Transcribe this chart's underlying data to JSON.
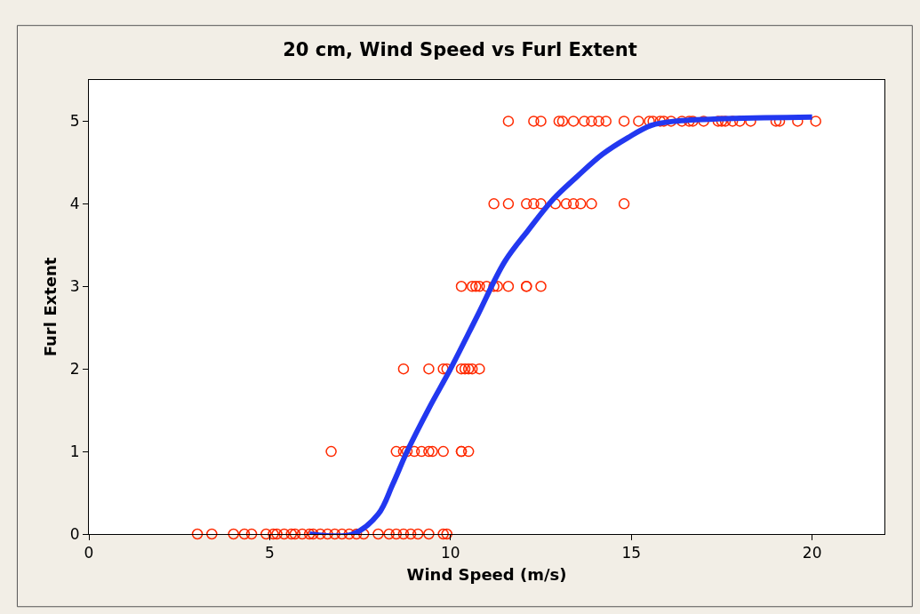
{
  "chart_data": {
    "type": "scatter",
    "title": "20 cm, Wind Speed vs Furl Extent",
    "xlabel": "Wind Speed (m/s)",
    "ylabel": "Furl Extent",
    "xlim": [
      0,
      22
    ],
    "ylim": [
      0,
      5.5
    ],
    "xticks": [
      0,
      5,
      10,
      15,
      20
    ],
    "yticks": [
      0,
      1,
      2,
      3,
      4,
      5
    ],
    "series": [
      {
        "marker": "circle",
        "color": "#ff2a00",
        "x": [
          3.0,
          3.4,
          4.0,
          4.3,
          4.5,
          4.9,
          5.1,
          5.2,
          5.4,
          5.6,
          5.7,
          5.9,
          6.1,
          6.2,
          6.4,
          6.6,
          6.8,
          7.0,
          7.2,
          7.4,
          7.6,
          8.0,
          8.3,
          8.5,
          8.7,
          8.9,
          9.1,
          9.4,
          9.8,
          9.9,
          6.7,
          8.5,
          8.7,
          8.8,
          9.0,
          9.2,
          9.4,
          9.5,
          9.8,
          10.3,
          10.3,
          10.5,
          8.7,
          9.4,
          9.8,
          9.9,
          10.3,
          10.4,
          10.5,
          10.6,
          10.8,
          10.3,
          10.6,
          10.7,
          10.8,
          11.0,
          11.2,
          11.3,
          11.6,
          12.1,
          12.1,
          12.5,
          11.2,
          11.6,
          12.1,
          12.3,
          12.5,
          12.9,
          13.2,
          13.4,
          13.6,
          13.9,
          14.8,
          11.6,
          12.3,
          12.5,
          13.0,
          13.1,
          13.4,
          13.7,
          13.9,
          14.1,
          14.3,
          14.8,
          15.2,
          15.5,
          15.6,
          15.8,
          15.9,
          16.1,
          16.4,
          16.6,
          16.7,
          17.0,
          17.4,
          17.5,
          17.6,
          17.8,
          18.0,
          18.3,
          19.0,
          19.1,
          19.6,
          20.1
        ],
        "values": [
          0,
          0,
          0,
          0,
          0,
          0,
          0,
          0,
          0,
          0,
          0,
          0,
          0,
          0,
          0,
          0,
          0,
          0,
          0,
          0,
          0,
          0,
          0,
          0,
          0,
          0,
          0,
          0,
          0,
          0,
          1,
          1,
          1,
          1,
          1,
          1,
          1,
          1,
          1,
          1,
          1,
          1,
          2,
          2,
          2,
          2,
          2,
          2,
          2,
          2,
          2,
          3,
          3,
          3,
          3,
          3,
          3,
          3,
          3,
          3,
          3,
          3,
          4,
          4,
          4,
          4,
          4,
          4,
          4,
          4,
          4,
          4,
          4,
          5,
          5,
          5,
          5,
          5,
          5,
          5,
          5,
          5,
          5,
          5,
          5,
          5,
          5,
          5,
          5,
          5,
          5,
          5,
          5,
          5,
          5,
          5,
          5,
          5,
          5,
          5,
          5,
          5,
          5,
          5
        ]
      },
      {
        "type": "line",
        "color": "#2238f0",
        "x": [
          6.1,
          7.3,
          8.0,
          8.4,
          8.8,
          9.4,
          10.0,
          10.75,
          11.5,
          12.15,
          12.85,
          13.5,
          14.2,
          14.9,
          15.55,
          16.2,
          20.0
        ],
        "values": [
          0,
          0,
          0.24,
          0.6,
          1.0,
          1.52,
          2.0,
          2.65,
          3.3,
          3.68,
          4.06,
          4.33,
          4.6,
          4.8,
          4.95,
          5.0,
          5.05
        ]
      }
    ]
  }
}
